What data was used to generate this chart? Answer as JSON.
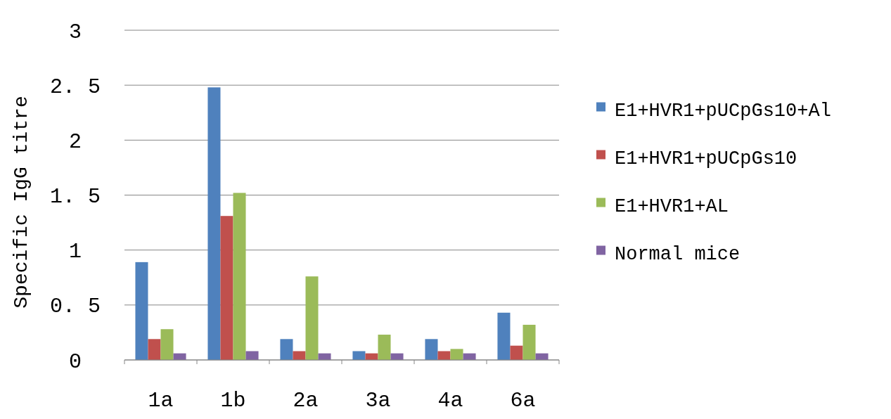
{
  "chart_data": {
    "type": "bar",
    "ylabel": "Specific IgG titre",
    "categories": [
      "1a",
      "1b",
      "2a",
      "3a",
      "4a",
      "6a"
    ],
    "series": [
      {
        "name": "E1+HVR1+pUCpGs10+Al",
        "color": "#4f81bd",
        "values": [
          0.89,
          2.48,
          0.19,
          0.08,
          0.19,
          0.43
        ]
      },
      {
        "name": "E1+HVR1+pUCpGs10",
        "color": "#c0504d",
        "values": [
          0.19,
          1.31,
          0.08,
          0.06,
          0.08,
          0.13
        ]
      },
      {
        "name": "E1+HVR1+AL",
        "color": "#9bbb59",
        "values": [
          0.28,
          1.52,
          0.76,
          0.23,
          0.1,
          0.32
        ]
      },
      {
        "name": "Normal mice",
        "color": "#8064a2",
        "values": [
          0.06,
          0.08,
          0.06,
          0.06,
          0.06,
          0.06
        ]
      }
    ],
    "ylim": [
      0,
      3
    ],
    "yticks": [
      0,
      {
        "value": 0.5,
        "label": "0. 5"
      },
      1,
      {
        "value": 1.5,
        "label": "1. 5"
      },
      2,
      {
        "value": 2.5,
        "label": "2. 5"
      },
      3
    ],
    "grid": "y",
    "legend": "right"
  }
}
